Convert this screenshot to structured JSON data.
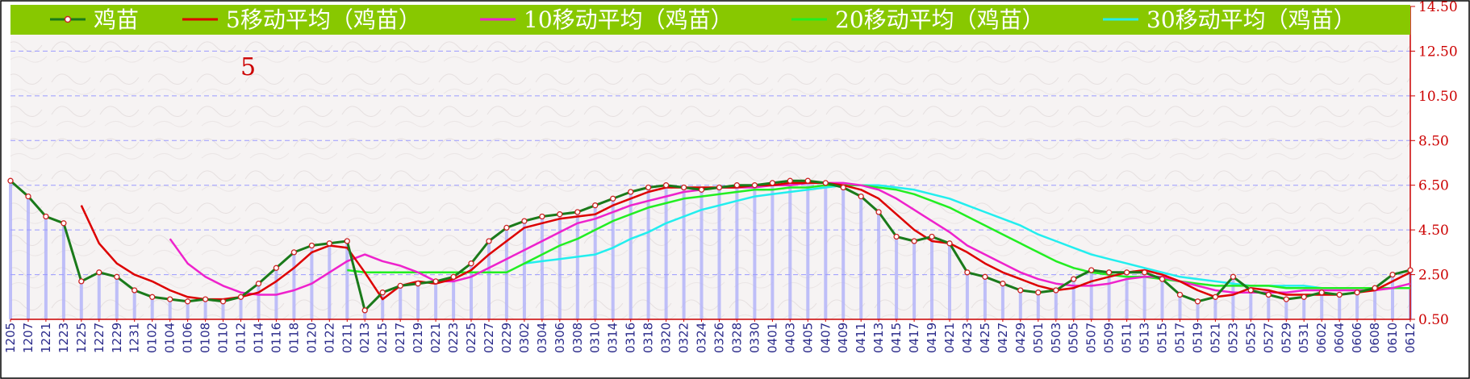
{
  "chart_data": {
    "type": "line",
    "title": "",
    "annotation": "5",
    "ylim": [
      0.5,
      14.5
    ],
    "yticks": [
      "0.50",
      "2.50",
      "4.50",
      "6.50",
      "8.50",
      "10.50",
      "12.50",
      "14.50"
    ],
    "xlabels": [
      "1205",
      "1207",
      "1221",
      "1223",
      "1225",
      "1227",
      "1229",
      "1231",
      "0102",
      "0104",
      "0106",
      "0108",
      "0110",
      "0112",
      "0114",
      "0116",
      "0118",
      "0120",
      "0122",
      "0211",
      "0213",
      "0215",
      "0217",
      "0219",
      "0221",
      "0223",
      "0225",
      "0227",
      "0229",
      "0302",
      "0304",
      "0306",
      "0308",
      "0310",
      "0314",
      "0316",
      "0318",
      "0320",
      "0322",
      "0324",
      "0326",
      "0328",
      "0330",
      "0401",
      "0403",
      "0405",
      "0407",
      "0409",
      "0411",
      "0413",
      "0415",
      "0417",
      "0419",
      "0421",
      "0423",
      "0425",
      "0427",
      "0429",
      "0501",
      "0503",
      "0505",
      "0507",
      "0509",
      "0511",
      "0513",
      "0515",
      "0517",
      "0519",
      "0521",
      "0523",
      "0525",
      "0527",
      "0529",
      "0531",
      "0602",
      "0604",
      "0606",
      "0608",
      "0610",
      "0612"
    ],
    "series": [
      {
        "name": "鸡苗",
        "color": "#1a7a1a",
        "marker": true,
        "values": [
          6.7,
          6.0,
          5.1,
          4.8,
          2.2,
          2.6,
          2.4,
          1.8,
          1.5,
          1.4,
          1.3,
          1.4,
          1.3,
          1.5,
          2.1,
          2.8,
          3.5,
          3.8,
          3.9,
          4.0,
          0.9,
          1.7,
          2.0,
          2.1,
          2.2,
          2.4,
          3.0,
          4.0,
          4.6,
          4.9,
          5.1,
          5.2,
          5.3,
          5.6,
          5.9,
          6.2,
          6.4,
          6.5,
          6.4,
          6.3,
          6.4,
          6.5,
          6.5,
          6.6,
          6.7,
          6.7,
          6.6,
          6.4,
          6.0,
          5.3,
          4.2,
          4.0,
          4.2,
          3.9,
          2.6,
          2.4,
          2.1,
          1.8,
          1.7,
          1.8,
          2.3,
          2.7,
          2.6,
          2.6,
          2.6,
          2.3,
          1.6,
          1.3,
          1.5,
          2.4,
          1.8,
          1.6,
          1.4,
          1.5,
          1.7,
          1.6,
          1.7,
          1.9,
          2.5,
          2.7
        ]
      },
      {
        "name": "5移动平均（鸡苗）",
        "color": "#dd0000",
        "marker": false,
        "values": [
          null,
          null,
          null,
          null,
          5.6,
          3.9,
          3.0,
          2.5,
          2.2,
          1.8,
          1.5,
          1.4,
          1.4,
          1.5,
          1.7,
          2.2,
          2.8,
          3.5,
          3.8,
          3.7,
          2.6,
          1.4,
          2.0,
          2.2,
          2.1,
          2.3,
          2.7,
          3.4,
          4.0,
          4.6,
          4.8,
          5.0,
          5.1,
          5.2,
          5.6,
          5.9,
          6.2,
          6.4,
          6.4,
          6.4,
          6.4,
          6.4,
          6.5,
          6.5,
          6.6,
          6.6,
          6.6,
          6.5,
          6.3,
          5.9,
          5.2,
          4.5,
          4.0,
          3.9,
          3.5,
          3.0,
          2.6,
          2.3,
          2.0,
          1.8,
          1.9,
          2.2,
          2.4,
          2.6,
          2.7,
          2.5,
          2.2,
          1.8,
          1.5,
          1.6,
          1.9,
          1.8,
          1.6,
          1.6,
          1.6,
          1.6,
          1.7,
          1.8,
          2.2,
          2.6
        ]
      },
      {
        "name": "10移动平均（鸡苗）",
        "color": "#ee22cc",
        "marker": false,
        "values": [
          null,
          null,
          null,
          null,
          null,
          null,
          null,
          null,
          null,
          4.1,
          3.0,
          2.4,
          2.0,
          1.7,
          1.6,
          1.6,
          1.8,
          2.1,
          2.6,
          3.1,
          3.4,
          3.1,
          2.9,
          2.6,
          2.2,
          2.2,
          2.4,
          2.8,
          3.2,
          3.6,
          4.0,
          4.4,
          4.8,
          5.0,
          5.3,
          5.6,
          5.8,
          6.0,
          6.2,
          6.3,
          6.4,
          6.4,
          6.4,
          6.5,
          6.5,
          6.6,
          6.6,
          6.6,
          6.5,
          6.3,
          5.9,
          5.4,
          4.9,
          4.4,
          3.8,
          3.4,
          3.0,
          2.6,
          2.3,
          2.1,
          2.0,
          2.0,
          2.1,
          2.3,
          2.4,
          2.4,
          2.2,
          2.0,
          1.8,
          1.7,
          1.7,
          1.7,
          1.7,
          1.8,
          1.8,
          1.8,
          1.8,
          1.8,
          1.9,
          2.1
        ]
      },
      {
        "name": "20移动平均（鸡苗）",
        "color": "#22ee22",
        "marker": false,
        "values": [
          null,
          null,
          null,
          null,
          null,
          null,
          null,
          null,
          null,
          null,
          null,
          null,
          null,
          null,
          null,
          null,
          null,
          null,
          null,
          2.7,
          2.6,
          2.6,
          2.6,
          2.6,
          2.6,
          2.6,
          2.6,
          2.6,
          2.6,
          3.0,
          3.4,
          3.8,
          4.1,
          4.5,
          4.9,
          5.2,
          5.5,
          5.7,
          5.9,
          6.0,
          6.1,
          6.2,
          6.3,
          6.3,
          6.4,
          6.4,
          6.5,
          6.5,
          6.5,
          6.4,
          6.3,
          6.1,
          5.8,
          5.5,
          5.1,
          4.7,
          4.3,
          3.9,
          3.5,
          3.1,
          2.8,
          2.6,
          2.5,
          2.4,
          2.4,
          2.3,
          2.2,
          2.1,
          2.0,
          2.0,
          2.0,
          2.0,
          1.9,
          1.9,
          1.9,
          1.9,
          1.9,
          1.9,
          1.9,
          1.9
        ]
      },
      {
        "name": "30移动平均（鸡苗）",
        "color": "#22eeee",
        "marker": false,
        "values": [
          null,
          null,
          null,
          null,
          null,
          null,
          null,
          null,
          null,
          null,
          null,
          null,
          null,
          null,
          null,
          null,
          null,
          null,
          null,
          null,
          null,
          null,
          null,
          null,
          null,
          null,
          null,
          null,
          null,
          3.0,
          3.1,
          3.2,
          3.3,
          3.4,
          3.7,
          4.1,
          4.4,
          4.8,
          5.1,
          5.4,
          5.6,
          5.8,
          6.0,
          6.1,
          6.2,
          6.3,
          6.4,
          6.5,
          6.5,
          6.5,
          6.4,
          6.3,
          6.1,
          5.9,
          5.6,
          5.3,
          5.0,
          4.7,
          4.3,
          4.0,
          3.7,
          3.4,
          3.2,
          3.0,
          2.8,
          2.6,
          2.4,
          2.3,
          2.2,
          2.1,
          2.0,
          2.0,
          2.0,
          2.0,
          1.9,
          1.9,
          1.9,
          1.9,
          1.9,
          1.9
        ]
      }
    ],
    "colors": {
      "legend_bg": "#88c800",
      "legend_text": "#ffffff",
      "plot_bg": "#f6f3f3",
      "grid": "#9a9aff",
      "bars": "#b4b4f8",
      "axis": "#cc0000",
      "ytick_text": "#cc0000",
      "xtick_text": "#2a2a8a",
      "annotation": "#cc0000",
      "marker_fill": "#ffffff",
      "marker_stroke": "#cc2222"
    }
  }
}
